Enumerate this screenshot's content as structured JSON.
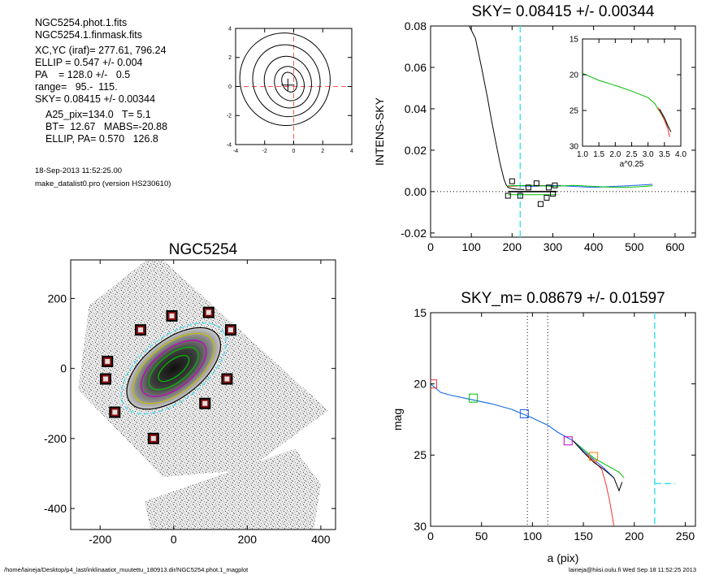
{
  "header": {
    "info_lines": [
      "NGC5254.phot.1.fits",
      "NGC5254.1.finmask.fits",
      "XC,YC (iraf)=   277.61, 796.24",
      "ELLIP = 0.547 +/- 0.004",
      "PA    = 128.0 +/-   0.5",
      "range=   95.-  115.",
      "SKY= 0.08415 +/- 0.00344",
      "A25_pix=134.0   T= 5.1",
      "BT=  12.67   MABS=-20.88",
      "ELLIP, PA= 0.570   126.8"
    ],
    "timestamp": "18-Sep-2013 11:52:25.00",
    "program": "make_datalist0.pro (version HS230610)"
  },
  "footer": {
    "path": "/home/laineja/Desktop/p4_last/inklinaatiot_muutettu_180913.dir/NGC5254.phot.1_magplot",
    "user_stamp": "laineja@hiisi.oulu.fi  Wed Sep 18 11:52:25 2013"
  },
  "chart_data": [
    {
      "id": "contour",
      "type": "contour",
      "title": "",
      "xlabel": "",
      "ylabel": "",
      "xlim": [
        -4,
        4
      ],
      "ylim": [
        -4,
        4
      ],
      "xticks": [
        -4,
        -2,
        0,
        2,
        4
      ],
      "yticks": [
        -4,
        -2,
        0,
        2,
        4
      ],
      "contours": [
        {
          "cx": -0.3,
          "cy": 0.3,
          "rx": 0.5,
          "ry": 0.7
        },
        {
          "cx": -0.3,
          "cy": 0.2,
          "rx": 1.0,
          "ry": 1.2
        },
        {
          "cx": -0.4,
          "cy": 0.3,
          "rx": 1.6,
          "ry": 1.8
        },
        {
          "cx": -0.5,
          "cy": 0.4,
          "rx": 2.3,
          "ry": 2.5
        },
        {
          "cx": -0.6,
          "cy": 0.5,
          "rx": 3.1,
          "ry": 3.2
        }
      ],
      "center": [
        -0.4,
        0.1
      ],
      "colors": {
        "crosshair": "#ff5555",
        "lines": "#000000"
      }
    },
    {
      "id": "sky",
      "type": "line",
      "title": "SKY= 0.08415 +/- 0.00344",
      "xlabel": "",
      "ylabel": "INTENS-SKY",
      "xlim": [
        0,
        650
      ],
      "ylim": [
        -0.022,
        0.08
      ],
      "xticks": [
        0,
        100,
        200,
        300,
        400,
        500,
        600
      ],
      "yticks": [
        -0.02,
        0.0,
        0.02,
        0.04,
        0.06,
        0.08
      ],
      "yticklabels": [
        "-0.02",
        "0.00",
        "0.02",
        "0.04",
        "0.06",
        "0.08"
      ],
      "vline": {
        "x": 220,
        "color": "#40e0f0"
      },
      "zero_line": true,
      "series": [
        {
          "color": "#000000",
          "x": [
            95,
            110,
            125,
            140,
            150,
            160,
            170,
            180,
            185,
            190,
            200,
            210,
            230
          ],
          "y": [
            0.08,
            0.074,
            0.06,
            0.045,
            0.034,
            0.024,
            0.014,
            0.006,
            0.0035,
            0.002,
            0.0015,
            0.0012,
            0.001
          ]
        },
        {
          "color": "#ff3030",
          "x": [
            190,
            220,
            260,
            300,
            320
          ],
          "y": [
            0.0025,
            0.0028,
            0.003,
            0.0028,
            0.003
          ]
        },
        {
          "color": "#2060ff",
          "x": [
            200,
            250,
            300,
            350,
            400,
            450,
            500,
            545
          ],
          "y": [
            0.003,
            0.0025,
            0.003,
            0.0025,
            0.002,
            0.0025,
            0.003,
            0.0035
          ]
        },
        {
          "color": "#00c000",
          "x": [
            190,
            250,
            300,
            350,
            400,
            450,
            500,
            545
          ],
          "y": [
            0.0028,
            0.003,
            0.0025,
            0.003,
            0.0025,
            0.002,
            0.0022,
            0.0028
          ]
        },
        {
          "color": "#000000",
          "x": [
            190,
            310
          ],
          "y": [
            0.0,
            0.0
          ]
        },
        {
          "color": "#00c000",
          "x": [
            190,
            310
          ],
          "y": [
            -0.0015,
            -0.0015
          ]
        }
      ],
      "markers": [
        {
          "x": 200,
          "y": 0.005
        },
        {
          "x": 190,
          "y": -0.002
        },
        {
          "x": 220,
          "y": -0.002
        },
        {
          "x": 240,
          "y": 0.002
        },
        {
          "x": 260,
          "y": 0.004
        },
        {
          "x": 270,
          "y": -0.006
        },
        {
          "x": 285,
          "y": -0.003
        },
        {
          "x": 300,
          "y": -0.001
        },
        {
          "x": 305,
          "y": 0.003
        },
        {
          "x": 290,
          "y": 0.002
        }
      ]
    },
    {
      "id": "sky_inset",
      "type": "line",
      "title": "",
      "xlabel": "a^0.25",
      "ylabel": "",
      "xlim": [
        1.0,
        4.0
      ],
      "ylim": [
        30,
        15
      ],
      "xticks": [
        1.0,
        1.5,
        2.0,
        2.5,
        3.0,
        3.5,
        4.0
      ],
      "xticklabels": [
        "1.0",
        "1.5",
        "2.0",
        "2.5",
        "3.0",
        "3.5",
        "4.0"
      ],
      "yticks": [
        15,
        20,
        25,
        30
      ],
      "series": [
        {
          "color": "#00c000",
          "x": [
            1.0,
            1.5,
            2.0,
            2.5,
            3.0,
            3.2,
            3.4,
            3.55,
            3.65
          ],
          "y": [
            19.8,
            20.8,
            21.5,
            22.3,
            23.2,
            24.0,
            25.5,
            26.8,
            27.5
          ]
        },
        {
          "color": "#ff3030",
          "x": [
            3.3,
            3.45,
            3.6,
            3.66
          ],
          "y": [
            24.6,
            25.8,
            27.5,
            28.7
          ]
        },
        {
          "color": "#000000",
          "x": [
            3.35,
            3.5,
            3.62,
            3.7
          ],
          "y": [
            24.8,
            26.0,
            27.3,
            28.0
          ]
        }
      ]
    },
    {
      "id": "image",
      "type": "scatter",
      "title": "NGC5254",
      "xlabel": "",
      "ylabel": "",
      "xlim": [
        -280,
        440
      ],
      "ylim": [
        -460,
        310
      ],
      "xticks": [
        -200,
        0,
        200,
        400
      ],
      "yticks": [
        -400,
        -200,
        0,
        200
      ],
      "isophotes": [
        {
          "rx": 50,
          "ry": 22,
          "color": "#00c000"
        },
        {
          "rx": 80,
          "ry": 38,
          "color": "#00c000"
        },
        {
          "rx": 105,
          "ry": 52,
          "color": "#c000c0"
        },
        {
          "rx": 130,
          "ry": 66,
          "color": "#c0c000"
        },
        {
          "rx": 150,
          "ry": 78,
          "color": "#000000"
        },
        {
          "rx": 168,
          "ry": 86,
          "color": "#40e0f0"
        }
      ],
      "galaxy_pa_deg": -38,
      "stars": [
        {
          "x": -90,
          "y": 110
        },
        {
          "x": -5,
          "y": 150
        },
        {
          "x": 95,
          "y": 160
        },
        {
          "x": 155,
          "y": 110
        },
        {
          "x": -180,
          "y": 20
        },
        {
          "x": -185,
          "y": -30
        },
        {
          "x": 145,
          "y": -30
        },
        {
          "x": 85,
          "y": -100
        },
        {
          "x": -160,
          "y": -125
        },
        {
          "x": -55,
          "y": -200
        }
      ],
      "colors": {
        "star_box": "#000000",
        "star_fill": "#8b1010"
      }
    },
    {
      "id": "mag",
      "type": "line",
      "title": "SKY_m=  0.08679 +/- 0.01597",
      "xlabel": "a (pix)",
      "ylabel": "mag",
      "xlim": [
        0,
        260
      ],
      "ylim": [
        30,
        15
      ],
      "xticks": [
        0,
        50,
        100,
        150,
        200,
        250
      ],
      "yticks": [
        15,
        20,
        25,
        30
      ],
      "vlines_dotted": [
        95,
        115
      ],
      "vline": {
        "x": 220,
        "color": "#40e0f0"
      },
      "hline_seg": {
        "x": [
          220,
          240
        ],
        "y": 27.0,
        "color": "#40e0f0"
      },
      "series": [
        {
          "color": "#00c000",
          "x": [
            0,
            10,
            20,
            40,
            60,
            80,
            100,
            115,
            125,
            140,
            150,
            160,
            170,
            180,
            185,
            190
          ],
          "y": [
            20.0,
            20.6,
            20.8,
            21.1,
            21.4,
            21.8,
            22.4,
            22.9,
            23.4,
            24.0,
            24.6,
            25.2,
            25.6,
            26.0,
            26.2,
            26.6
          ]
        },
        {
          "color": "#2060ff",
          "x": [
            0,
            10,
            20,
            40,
            60,
            80,
            100,
            115,
            125,
            140,
            150,
            160,
            170,
            180
          ],
          "y": [
            20.0,
            20.6,
            20.8,
            21.1,
            21.4,
            21.8,
            22.4,
            22.9,
            23.4,
            24.0,
            24.7,
            25.3,
            25.9,
            26.6
          ]
        },
        {
          "color": "#ff3030",
          "x": [
            140,
            150,
            160,
            168,
            172,
            176,
            180
          ],
          "y": [
            24.0,
            24.8,
            25.4,
            26.0,
            27.0,
            28.3,
            30.0
          ]
        },
        {
          "color": "#000000",
          "x": [
            140,
            150,
            160,
            170,
            180,
            185,
            188
          ],
          "y": [
            24.0,
            24.8,
            25.5,
            26.0,
            26.6,
            27.5,
            26.9
          ]
        }
      ],
      "markers": [
        {
          "x": 2,
          "y": 20.0,
          "color": "#ff3030"
        },
        {
          "x": 42,
          "y": 21.0,
          "color": "#00c000"
        },
        {
          "x": 92,
          "y": 22.1,
          "color": "#2060ff"
        },
        {
          "x": 135,
          "y": 24.0,
          "color": "#c000c0"
        },
        {
          "x": 160,
          "y": 25.1,
          "color": "#ff8000"
        }
      ]
    }
  ]
}
